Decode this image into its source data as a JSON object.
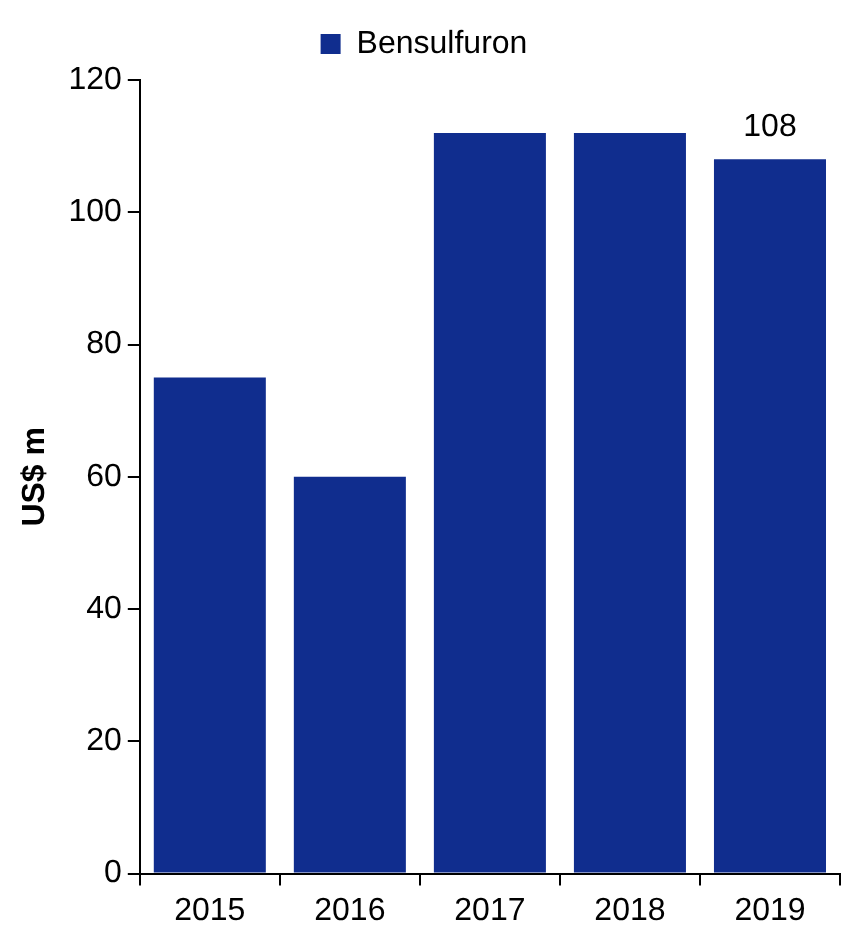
{
  "chart_data": {
    "type": "bar",
    "ylabel": "US$ m",
    "categories": [
      "2015",
      "2016",
      "2017",
      "2018",
      "2019"
    ],
    "series": [
      {
        "name": "Bensulfuron",
        "color": "#102d8e",
        "values": [
          75,
          60,
          112,
          112,
          108
        ],
        "value_labels": [
          null,
          null,
          null,
          null,
          "108"
        ]
      }
    ],
    "ylim": [
      0,
      120
    ],
    "yticks": [
      0,
      20,
      40,
      60,
      80,
      100,
      120
    ],
    "grid": false,
    "legend": "top"
  }
}
